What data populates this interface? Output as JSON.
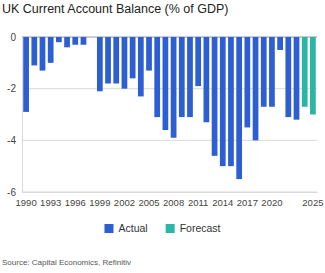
{
  "chart_data": {
    "type": "bar",
    "title": "UK Current Account Balance (% of GDP)",
    "source": "Source: Capital Economics, Refinitiv",
    "categories": [
      "1990",
      null,
      null,
      "1993",
      null,
      null,
      "1996",
      null,
      null,
      "1999",
      null,
      null,
      "2002",
      null,
      null,
      "2005",
      null,
      null,
      "2008",
      null,
      null,
      "2011",
      null,
      null,
      "2014",
      null,
      null,
      "2017",
      null,
      null,
      "2020",
      null,
      null,
      null,
      null,
      "2025"
    ],
    "series": [
      {
        "name": "Actual",
        "color": "#2d5fd2",
        "values": [
          -2.9,
          -1.1,
          -1.3,
          -1.0,
          -0.2,
          -0.4,
          -0.3,
          -0.3,
          0.0,
          -2.1,
          -1.8,
          -1.8,
          -2.0,
          -1.6,
          -2.3,
          -1.3,
          -3.1,
          -3.6,
          -3.9,
          -3.1,
          -3.1,
          -1.9,
          -3.3,
          -4.6,
          -5.0,
          -5.0,
          -5.5,
          -3.5,
          -4.0,
          -2.7,
          -2.7,
          -0.5,
          -3.1,
          -3.2,
          null,
          null
        ]
      },
      {
        "name": "Forecast",
        "color": "#2bb5a5",
        "values": [
          null,
          null,
          null,
          null,
          null,
          null,
          null,
          null,
          null,
          null,
          null,
          null,
          null,
          null,
          null,
          null,
          null,
          null,
          null,
          null,
          null,
          null,
          null,
          null,
          null,
          null,
          null,
          null,
          null,
          null,
          null,
          null,
          null,
          null,
          -2.7,
          -3.0
        ]
      }
    ],
    "ylim": [
      -6,
      0
    ],
    "yticks": [
      0,
      -2,
      -4,
      -6
    ],
    "grid": true,
    "legend": "bottom"
  }
}
